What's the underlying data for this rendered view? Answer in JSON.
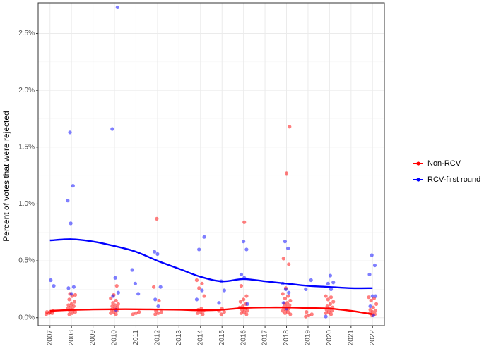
{
  "chart_data": {
    "type": "scatter",
    "title": "",
    "xlabel": "",
    "ylabel": "Percent of votes that were rejected",
    "x_ticks": [
      "2007",
      "2008",
      "2009",
      "2010",
      "2011",
      "2012",
      "2013",
      "2014",
      "2015",
      "2016",
      "2017",
      "2018",
      "2019",
      "2020",
      "2021",
      "2022"
    ],
    "y_ticks": [
      "0.0%",
      "0.5%",
      "1.0%",
      "1.5%",
      "2.0%",
      "2.5%"
    ],
    "xlim": [
      2006.45,
      2022.55
    ],
    "ylim": [
      -0.0007,
      0.0277
    ],
    "grid": true,
    "legend_position": "right",
    "series": [
      {
        "name": "Non-RCV",
        "color": "#ff0000",
        "points": [
          [
            2007,
            0.0003
          ],
          [
            2007,
            0.0004
          ],
          [
            2007,
            0.0004
          ],
          [
            2007,
            0.0005
          ],
          [
            2007,
            0.0005
          ],
          [
            2007,
            0.0006
          ],
          [
            2008,
            0.0003
          ],
          [
            2008,
            0.0004
          ],
          [
            2008,
            0.0005
          ],
          [
            2008,
            0.0006
          ],
          [
            2008,
            0.0007
          ],
          [
            2008,
            0.0008
          ],
          [
            2008,
            0.0009
          ],
          [
            2008,
            0.001
          ],
          [
            2008,
            0.0011
          ],
          [
            2008,
            0.0012
          ],
          [
            2008,
            0.0014
          ],
          [
            2008,
            0.0016
          ],
          [
            2008,
            0.0019
          ],
          [
            2008,
            0.002
          ],
          [
            2008,
            0.0021
          ],
          [
            2010,
            0.0003
          ],
          [
            2010,
            0.0004
          ],
          [
            2010,
            0.0005
          ],
          [
            2010,
            0.0006
          ],
          [
            2010,
            0.0007
          ],
          [
            2010,
            0.0008
          ],
          [
            2010,
            0.0009
          ],
          [
            2010,
            0.001
          ],
          [
            2010,
            0.0011
          ],
          [
            2010,
            0.0012
          ],
          [
            2010,
            0.0013
          ],
          [
            2010,
            0.0015
          ],
          [
            2010,
            0.0017
          ],
          [
            2010,
            0.002
          ],
          [
            2010,
            0.0028
          ],
          [
            2011,
            0.0003
          ],
          [
            2011,
            0.0004
          ],
          [
            2011,
            0.0005
          ],
          [
            2012,
            0.0003
          ],
          [
            2012,
            0.0004
          ],
          [
            2012,
            0.0005
          ],
          [
            2012,
            0.0006
          ],
          [
            2012,
            0.0015
          ],
          [
            2012,
            0.0027
          ],
          [
            2012,
            0.0087
          ],
          [
            2014,
            0.0003
          ],
          [
            2014,
            0.0004
          ],
          [
            2014,
            0.0005
          ],
          [
            2014,
            0.0006
          ],
          [
            2014,
            0.0007
          ],
          [
            2014,
            0.0008
          ],
          [
            2014,
            0.0019
          ],
          [
            2014,
            0.0026
          ],
          [
            2014,
            0.003
          ],
          [
            2014,
            0.0033
          ],
          [
            2015,
            0.0003
          ],
          [
            2015,
            0.0005
          ],
          [
            2015,
            0.0006
          ],
          [
            2015,
            0.0008
          ],
          [
            2016,
            0.0003
          ],
          [
            2016,
            0.0004
          ],
          [
            2016,
            0.0005
          ],
          [
            2016,
            0.0006
          ],
          [
            2016,
            0.0007
          ],
          [
            2016,
            0.0008
          ],
          [
            2016,
            0.0009
          ],
          [
            2016,
            0.001
          ],
          [
            2016,
            0.0012
          ],
          [
            2016,
            0.0014
          ],
          [
            2016,
            0.0016
          ],
          [
            2016,
            0.0019
          ],
          [
            2016,
            0.0028
          ],
          [
            2016,
            0.0084
          ],
          [
            2018,
            0.0003
          ],
          [
            2018,
            0.0004
          ],
          [
            2018,
            0.0005
          ],
          [
            2018,
            0.0006
          ],
          [
            2018,
            0.0007
          ],
          [
            2018,
            0.0008
          ],
          [
            2018,
            0.0009
          ],
          [
            2018,
            0.001
          ],
          [
            2018,
            0.0011
          ],
          [
            2018,
            0.0012
          ],
          [
            2018,
            0.0013
          ],
          [
            2018,
            0.0015
          ],
          [
            2018,
            0.0017
          ],
          [
            2018,
            0.0019
          ],
          [
            2018,
            0.0021
          ],
          [
            2018,
            0.0026
          ],
          [
            2018,
            0.0047
          ],
          [
            2018,
            0.0052
          ],
          [
            2018,
            0.0127
          ],
          [
            2018,
            0.0168
          ],
          [
            2019,
            0.0001
          ],
          [
            2019,
            0.0002
          ],
          [
            2019,
            0.0003
          ],
          [
            2019,
            0.0005
          ],
          [
            2020,
            0.0003
          ],
          [
            2020,
            0.0004
          ],
          [
            2020,
            0.0005
          ],
          [
            2020,
            0.0006
          ],
          [
            2020,
            0.0007
          ],
          [
            2020,
            0.0008
          ],
          [
            2020,
            0.0009
          ],
          [
            2020,
            0.001
          ],
          [
            2020,
            0.0012
          ],
          [
            2020,
            0.0014
          ],
          [
            2020,
            0.0016
          ],
          [
            2020,
            0.0018
          ],
          [
            2020,
            0.0019
          ],
          [
            2022,
            0.0002
          ],
          [
            2022,
            0.0003
          ],
          [
            2022,
            0.0004
          ],
          [
            2022,
            0.0005
          ],
          [
            2022,
            0.0006
          ],
          [
            2022,
            0.0007
          ],
          [
            2022,
            0.0009
          ],
          [
            2022,
            0.0012
          ],
          [
            2022,
            0.0015
          ],
          [
            2022,
            0.0017
          ],
          [
            2022,
            0.0018
          ]
        ],
        "trend": [
          [
            2007,
            0.0006
          ],
          [
            2008,
            0.00068
          ],
          [
            2009,
            0.00072
          ],
          [
            2010,
            0.00074
          ],
          [
            2011,
            0.00074
          ],
          [
            2012,
            0.00072
          ],
          [
            2013,
            0.0007
          ],
          [
            2014,
            0.00065
          ],
          [
            2015,
            0.0007
          ],
          [
            2016,
            0.00085
          ],
          [
            2017,
            0.0009
          ],
          [
            2018,
            0.0009
          ],
          [
            2019,
            0.00085
          ],
          [
            2020,
            0.0008
          ],
          [
            2021,
            0.0006
          ],
          [
            2022,
            0.0003
          ]
        ]
      },
      {
        "name": "RCV-first round",
        "color": "#0000ff",
        "points": [
          [
            2007,
            0.0033
          ],
          [
            2007,
            0.0028
          ],
          [
            2008,
            0.0163
          ],
          [
            2008,
            0.0116
          ],
          [
            2008,
            0.0103
          ],
          [
            2008,
            0.0083
          ],
          [
            2008,
            0.0027
          ],
          [
            2008,
            0.0026
          ],
          [
            2008,
            0.0021
          ],
          [
            2010,
            0.0273
          ],
          [
            2010,
            0.0166
          ],
          [
            2010,
            0.0035
          ],
          [
            2010,
            0.0022
          ],
          [
            2010,
            0.0019
          ],
          [
            2010,
            0.0007
          ],
          [
            2011,
            0.0042
          ],
          [
            2011,
            0.003
          ],
          [
            2011,
            0.0021
          ],
          [
            2012,
            0.0058
          ],
          [
            2012,
            0.0056
          ],
          [
            2012,
            0.0027
          ],
          [
            2012,
            0.0016
          ],
          [
            2012,
            0.001
          ],
          [
            2014,
            0.0071
          ],
          [
            2014,
            0.006
          ],
          [
            2014,
            0.0024
          ],
          [
            2014,
            0.0016
          ],
          [
            2015,
            0.0032
          ],
          [
            2015,
            0.0024
          ],
          [
            2015,
            0.0013
          ],
          [
            2016,
            0.0067
          ],
          [
            2016,
            0.006
          ],
          [
            2016,
            0.0038
          ],
          [
            2016,
            0.0035
          ],
          [
            2016,
            0.0012
          ],
          [
            2018,
            0.0067
          ],
          [
            2018,
            0.0061
          ],
          [
            2018,
            0.003
          ],
          [
            2018,
            0.0025
          ],
          [
            2018,
            0.0022
          ],
          [
            2018,
            0.0013
          ],
          [
            2018,
            0.0008
          ],
          [
            2019,
            0.0033
          ],
          [
            2019,
            0.0025
          ],
          [
            2020,
            0.0037
          ],
          [
            2020,
            0.0031
          ],
          [
            2020,
            0.003
          ],
          [
            2020,
            0.0025
          ],
          [
            2020,
            0.0001
          ],
          [
            2022,
            0.0055
          ],
          [
            2022,
            0.0046
          ],
          [
            2022,
            0.0038
          ],
          [
            2022,
            0.0019
          ],
          [
            2022,
            0.0019
          ],
          [
            2022,
            0.001
          ],
          [
            2022,
            0.0002
          ]
        ],
        "trend": [
          [
            2007,
            0.0068
          ],
          [
            2008,
            0.0069
          ],
          [
            2009,
            0.0067
          ],
          [
            2010,
            0.0063
          ],
          [
            2011,
            0.0058
          ],
          [
            2012,
            0.005
          ],
          [
            2013,
            0.0043
          ],
          [
            2014,
            0.0036
          ],
          [
            2015,
            0.0032
          ],
          [
            2016,
            0.0034
          ],
          [
            2017,
            0.0032
          ],
          [
            2018,
            0.003
          ],
          [
            2019,
            0.0028
          ],
          [
            2020,
            0.0027
          ],
          [
            2021,
            0.0026
          ],
          [
            2022,
            0.0026
          ]
        ]
      }
    ]
  }
}
